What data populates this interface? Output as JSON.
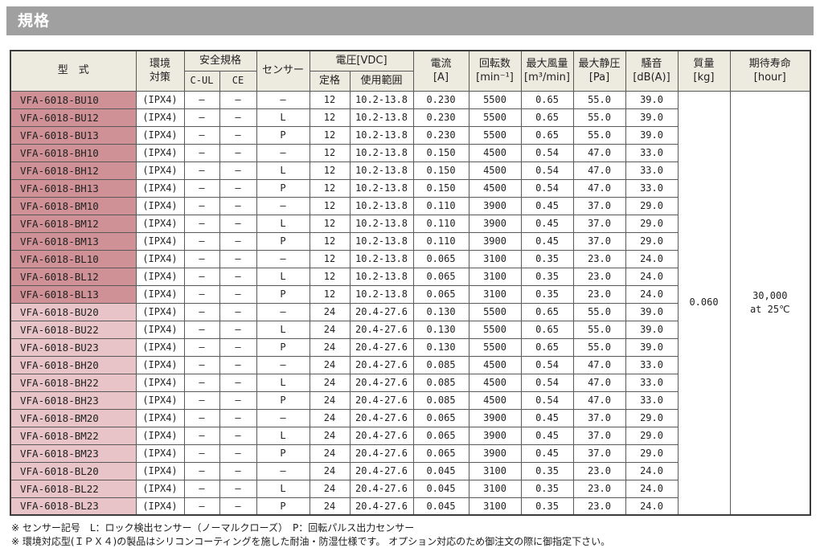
{
  "title": "規格",
  "colors": {
    "title_bar": "#a0a0a0",
    "header_bg": "#edeadf",
    "model_bg_12v": "#cf9196",
    "model_bg_24v": "#e8c4c8",
    "border_inner": "#595959",
    "border_outer": "#3c3c3c"
  },
  "table": {
    "headers": {
      "model": "型　式",
      "env": "環境\n対策",
      "safety": "安全規格",
      "c_ul": "C-UL",
      "ce": "CE",
      "sensor": "センサー",
      "voltage": "電圧[VDC]",
      "rated": "定格",
      "range": "使用範囲",
      "current": "電流\n[A]",
      "speed": "回転数\n[min⁻¹]",
      "airflow": "最大風量\n[m³/min]",
      "pressure": "最大静圧\n[Pa]",
      "noise": "騒音\n[dB(A)]",
      "mass": "質量\n[kg]",
      "life": "期待寿命\n[hour]"
    },
    "rows": [
      {
        "model": "VFA-6018-BU10",
        "env": "(IPX4)",
        "c_ul": "–",
        "ce": "–",
        "sensor": "–",
        "rated": "12",
        "range": "10.2-13.8",
        "current": "0.230",
        "speed": "5500",
        "airflow": "0.65",
        "pressure": "55.0",
        "noise": "39.0"
      },
      {
        "model": "VFA-6018-BU12",
        "env": "(IPX4)",
        "c_ul": "–",
        "ce": "–",
        "sensor": "L",
        "rated": "12",
        "range": "10.2-13.8",
        "current": "0.230",
        "speed": "5500",
        "airflow": "0.65",
        "pressure": "55.0",
        "noise": "39.0"
      },
      {
        "model": "VFA-6018-BU13",
        "env": "(IPX4)",
        "c_ul": "–",
        "ce": "–",
        "sensor": "P",
        "rated": "12",
        "range": "10.2-13.8",
        "current": "0.230",
        "speed": "5500",
        "airflow": "0.65",
        "pressure": "55.0",
        "noise": "39.0"
      },
      {
        "model": "VFA-6018-BH10",
        "env": "(IPX4)",
        "c_ul": "–",
        "ce": "–",
        "sensor": "–",
        "rated": "12",
        "range": "10.2-13.8",
        "current": "0.150",
        "speed": "4500",
        "airflow": "0.54",
        "pressure": "47.0",
        "noise": "33.0"
      },
      {
        "model": "VFA-6018-BH12",
        "env": "(IPX4)",
        "c_ul": "–",
        "ce": "–",
        "sensor": "L",
        "rated": "12",
        "range": "10.2-13.8",
        "current": "0.150",
        "speed": "4500",
        "airflow": "0.54",
        "pressure": "47.0",
        "noise": "33.0"
      },
      {
        "model": "VFA-6018-BH13",
        "env": "(IPX4)",
        "c_ul": "–",
        "ce": "–",
        "sensor": "P",
        "rated": "12",
        "range": "10.2-13.8",
        "current": "0.150",
        "speed": "4500",
        "airflow": "0.54",
        "pressure": "47.0",
        "noise": "33.0"
      },
      {
        "model": "VFA-6018-BM10",
        "env": "(IPX4)",
        "c_ul": "–",
        "ce": "–",
        "sensor": "–",
        "rated": "12",
        "range": "10.2-13.8",
        "current": "0.110",
        "speed": "3900",
        "airflow": "0.45",
        "pressure": "37.0",
        "noise": "29.0"
      },
      {
        "model": "VFA-6018-BM12",
        "env": "(IPX4)",
        "c_ul": "–",
        "ce": "–",
        "sensor": "L",
        "rated": "12",
        "range": "10.2-13.8",
        "current": "0.110",
        "speed": "3900",
        "airflow": "0.45",
        "pressure": "37.0",
        "noise": "29.0"
      },
      {
        "model": "VFA-6018-BM13",
        "env": "(IPX4)",
        "c_ul": "–",
        "ce": "–",
        "sensor": "P",
        "rated": "12",
        "range": "10.2-13.8",
        "current": "0.110",
        "speed": "3900",
        "airflow": "0.45",
        "pressure": "37.0",
        "noise": "29.0"
      },
      {
        "model": "VFA-6018-BL10",
        "env": "(IPX4)",
        "c_ul": "–",
        "ce": "–",
        "sensor": "–",
        "rated": "12",
        "range": "10.2-13.8",
        "current": "0.065",
        "speed": "3100",
        "airflow": "0.35",
        "pressure": "23.0",
        "noise": "24.0"
      },
      {
        "model": "VFA-6018-BL12",
        "env": "(IPX4)",
        "c_ul": "–",
        "ce": "–",
        "sensor": "L",
        "rated": "12",
        "range": "10.2-13.8",
        "current": "0.065",
        "speed": "3100",
        "airflow": "0.35",
        "pressure": "23.0",
        "noise": "24.0"
      },
      {
        "model": "VFA-6018-BL13",
        "env": "(IPX4)",
        "c_ul": "–",
        "ce": "–",
        "sensor": "P",
        "rated": "12",
        "range": "10.2-13.8",
        "current": "0.065",
        "speed": "3100",
        "airflow": "0.35",
        "pressure": "23.0",
        "noise": "24.0"
      },
      {
        "model": "VFA-6018-BU20",
        "env": "(IPX4)",
        "c_ul": "–",
        "ce": "–",
        "sensor": "–",
        "rated": "24",
        "range": "20.4-27.6",
        "current": "0.130",
        "speed": "5500",
        "airflow": "0.65",
        "pressure": "55.0",
        "noise": "39.0"
      },
      {
        "model": "VFA-6018-BU22",
        "env": "(IPX4)",
        "c_ul": "–",
        "ce": "–",
        "sensor": "L",
        "rated": "24",
        "range": "20.4-27.6",
        "current": "0.130",
        "speed": "5500",
        "airflow": "0.65",
        "pressure": "55.0",
        "noise": "39.0"
      },
      {
        "model": "VFA-6018-BU23",
        "env": "(IPX4)",
        "c_ul": "–",
        "ce": "–",
        "sensor": "P",
        "rated": "24",
        "range": "20.4-27.6",
        "current": "0.130",
        "speed": "5500",
        "airflow": "0.65",
        "pressure": "55.0",
        "noise": "39.0"
      },
      {
        "model": "VFA-6018-BH20",
        "env": "(IPX4)",
        "c_ul": "–",
        "ce": "–",
        "sensor": "–",
        "rated": "24",
        "range": "20.4-27.6",
        "current": "0.085",
        "speed": "4500",
        "airflow": "0.54",
        "pressure": "47.0",
        "noise": "33.0"
      },
      {
        "model": "VFA-6018-BH22",
        "env": "(IPX4)",
        "c_ul": "–",
        "ce": "–",
        "sensor": "L",
        "rated": "24",
        "range": "20.4-27.6",
        "current": "0.085",
        "speed": "4500",
        "airflow": "0.54",
        "pressure": "47.0",
        "noise": "33.0"
      },
      {
        "model": "VFA-6018-BH23",
        "env": "(IPX4)",
        "c_ul": "–",
        "ce": "–",
        "sensor": "P",
        "rated": "24",
        "range": "20.4-27.6",
        "current": "0.085",
        "speed": "4500",
        "airflow": "0.54",
        "pressure": "47.0",
        "noise": "33.0"
      },
      {
        "model": "VFA-6018-BM20",
        "env": "(IPX4)",
        "c_ul": "–",
        "ce": "–",
        "sensor": "–",
        "rated": "24",
        "range": "20.4-27.6",
        "current": "0.065",
        "speed": "3900",
        "airflow": "0.45",
        "pressure": "37.0",
        "noise": "29.0"
      },
      {
        "model": "VFA-6018-BM22",
        "env": "(IPX4)",
        "c_ul": "–",
        "ce": "–",
        "sensor": "L",
        "rated": "24",
        "range": "20.4-27.6",
        "current": "0.065",
        "speed": "3900",
        "airflow": "0.45",
        "pressure": "37.0",
        "noise": "29.0"
      },
      {
        "model": "VFA-6018-BM23",
        "env": "(IPX4)",
        "c_ul": "–",
        "ce": "–",
        "sensor": "P",
        "rated": "24",
        "range": "20.4-27.6",
        "current": "0.065",
        "speed": "3900",
        "airflow": "0.45",
        "pressure": "37.0",
        "noise": "29.0"
      },
      {
        "model": "VFA-6018-BL20",
        "env": "(IPX4)",
        "c_ul": "–",
        "ce": "–",
        "sensor": "–",
        "rated": "24",
        "range": "20.4-27.6",
        "current": "0.045",
        "speed": "3100",
        "airflow": "0.35",
        "pressure": "23.0",
        "noise": "24.0"
      },
      {
        "model": "VFA-6018-BL22",
        "env": "(IPX4)",
        "c_ul": "–",
        "ce": "–",
        "sensor": "L",
        "rated": "24",
        "range": "20.4-27.6",
        "current": "0.045",
        "speed": "3100",
        "airflow": "0.35",
        "pressure": "23.0",
        "noise": "24.0"
      },
      {
        "model": "VFA-6018-BL23",
        "env": "(IPX4)",
        "c_ul": "–",
        "ce": "–",
        "sensor": "P",
        "rated": "24",
        "range": "20.4-27.6",
        "current": "0.045",
        "speed": "3100",
        "airflow": "0.35",
        "pressure": "23.0",
        "noise": "24.0"
      }
    ],
    "merged": {
      "mass": "0.060",
      "life": "30,000\nat 25℃"
    }
  },
  "notes": [
    "※ センサー記号　L：ロック検出センサー（ノーマルクローズ）　P：回転パルス出力センサー",
    "※ 環境対応型(ＩＰＸ４)の製品はシリコンコーティングを施した耐油・防湿仕様です。 オプション対応のため御注文の際に御指定下さい。"
  ]
}
